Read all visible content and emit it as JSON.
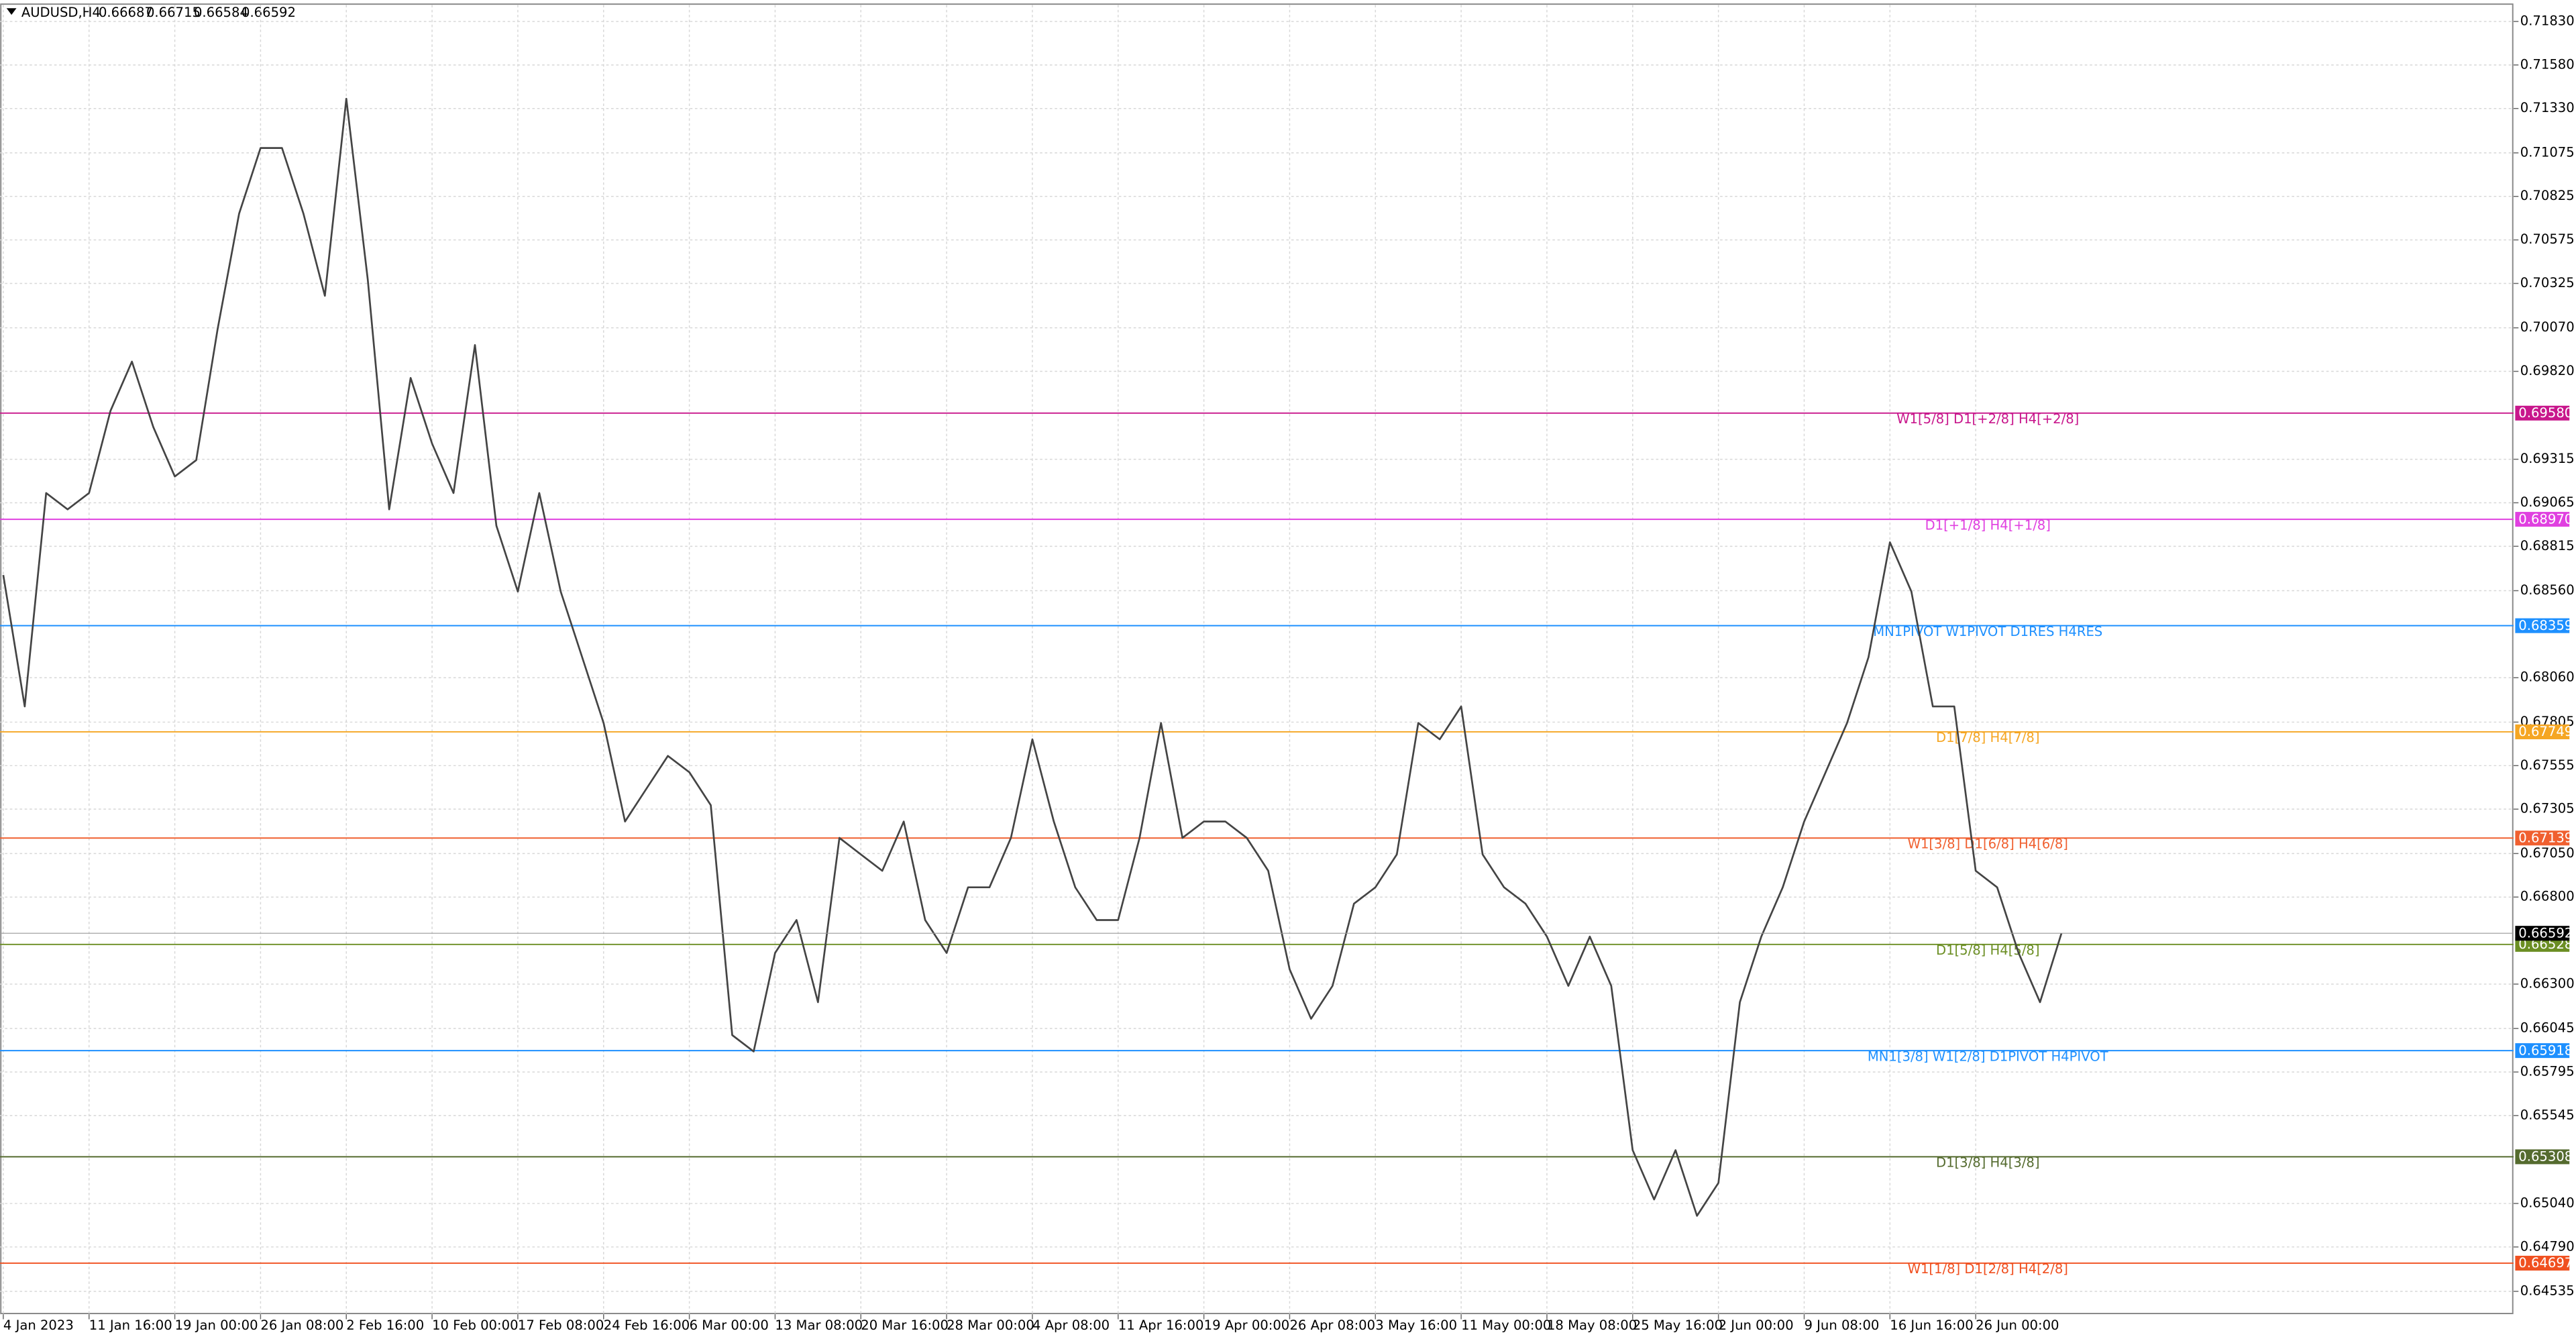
{
  "chart_data": {
    "type": "line",
    "symbol": "AUDUSD,H4",
    "ohlc": [
      0.66687,
      0.66715,
      0.66584,
      0.66592
    ],
    "current_price": 0.66592,
    "categories": [
      "4 Jan 2023",
      null,
      null,
      null,
      "11 Jan 16:00",
      null,
      null,
      null,
      "19 Jan 00:00",
      null,
      null,
      null,
      "26 Jan 08:00",
      null,
      null,
      null,
      "2 Feb 16:00",
      null,
      null,
      null,
      "10 Feb 00:00",
      null,
      null,
      null,
      "17 Feb 08:00",
      null,
      null,
      null,
      "24 Feb 16:00",
      null,
      null,
      null,
      "6 Mar 00:00",
      null,
      null,
      null,
      "13 Mar 08:00",
      null,
      null,
      null,
      "20 Mar 16:00",
      null,
      null,
      null,
      "28 Mar 00:00",
      null,
      null,
      null,
      "4 Apr 08:00",
      null,
      null,
      null,
      "11 Apr 16:00",
      null,
      null,
      null,
      "19 Apr 00:00",
      null,
      null,
      null,
      "26 Apr 08:00",
      null,
      null,
      null,
      "3 May 16:00",
      null,
      null,
      null,
      "11 May 00:00",
      null,
      null,
      null,
      "18 May 08:00",
      null,
      null,
      null,
      "25 May 16:00",
      null,
      null,
      null,
      "2 Jun 00:00",
      null,
      null,
      null,
      "9 Jun 08:00",
      null,
      null,
      null,
      "16 Jun 16:00",
      null,
      null,
      null,
      "26 Jun 00:00",
      null,
      null,
      null,
      null
    ],
    "values": [
      0.6865,
      0.67895,
      0.69121,
      0.69027,
      0.69121,
      0.69593,
      0.69876,
      0.69499,
      0.69216,
      0.6931,
      0.70065,
      0.70726,
      0.71103,
      0.71103,
      0.70726,
      0.70254,
      0.71386,
      0.70348,
      0.69027,
      0.69782,
      0.69405,
      0.69121,
      0.69971,
      0.68933,
      0.68555,
      0.69121,
      0.68555,
      0.68178,
      0.678,
      0.67234,
      0.67423,
      0.67611,
      0.67517,
      0.67328,
      0.66007,
      0.65913,
      0.66479,
      0.66668,
      0.66196,
      0.6714,
      0.67045,
      0.66951,
      0.67234,
      0.66668,
      0.66479,
      0.66856,
      0.66856,
      0.6714,
      0.67706,
      0.67234,
      0.66856,
      0.66668,
      0.66668,
      0.6714,
      0.678,
      0.6714,
      0.67234,
      0.67234,
      0.6714,
      0.66951,
      0.66385,
      0.66101,
      0.6629,
      0.66762,
      0.66856,
      0.67045,
      0.678,
      0.67706,
      0.67895,
      0.67045,
      0.66856,
      0.66762,
      0.66573,
      0.6629,
      0.66573,
      0.6629,
      0.65346,
      0.65063,
      0.65346,
      0.64969,
      0.65158,
      0.66196,
      0.66573,
      0.66856,
      0.67234,
      0.67517,
      0.678,
      0.68178,
      0.68838,
      0.68555,
      0.67895,
      0.67895,
      0.66951,
      0.66856,
      0.66479,
      0.66196,
      0.66592
    ],
    "color": "#444444",
    "ylim": [
      0.64403,
      0.71953
    ],
    "yticks": [
      {
        "value": 0.7183,
        "label": "0.71830"
      },
      {
        "value": 0.7158,
        "label": "0.71580"
      },
      {
        "value": 0.7133,
        "label": "0.71330"
      },
      0.71075,
      0.70825,
      0.70575,
      0.70325,
      {
        "value": 0.7007,
        "label": "0.70070"
      },
      {
        "value": 0.6982,
        "label": "0.69820"
      },
      0.69315,
      0.69065,
      0.68815,
      {
        "value": 0.6856,
        "label": "0.68560"
      },
      {
        "value": 0.6806,
        "label": "0.68060"
      },
      0.67805,
      0.67555,
      0.67305,
      {
        "value": 0.6705,
        "label": "0.67050"
      },
      {
        "value": 0.668,
        "label": "0.66800"
      },
      {
        "value": 0.663,
        "label": "0.66300"
      },
      0.66045,
      0.65795,
      0.65545,
      {
        "value": 0.6504,
        "label": "0.65040"
      },
      {
        "value": 0.6479,
        "label": "0.64790"
      },
      0.64535
    ],
    "grid": true,
    "levels": [
      {
        "label": "W1[5/8] D1[+2/8] H4[+2/8]",
        "price": {
          "value": 0.6958,
          "label": "0.69580"
        },
        "color": "#c8178c"
      },
      {
        "label": "D1[+1/8] H4[+1/8]",
        "price": {
          "value": 0.6897,
          "label": "0.68970"
        },
        "color": "#e040e0"
      },
      {
        "label": "MN1PIVOT W1PIVOT D1RES H4RES",
        "price": 0.68359,
        "color": "#1e90ff"
      },
      {
        "label": "D1[7/8] H4[7/8]",
        "price": 0.67749,
        "color": "#f5a623"
      },
      {
        "label": "W1[3/8] D1[6/8] H4[6/8]",
        "price": 0.67139,
        "color": "#f06030"
      },
      {
        "label": "D1[5/8] H4[5/8]",
        "price": 0.66528,
        "color": "#6b8e23"
      },
      {
        "label": "MN1[3/8] W1[2/8] D1PIVOT H4PIVOT",
        "price": 0.65918,
        "color": "#1e90ff"
      },
      {
        "label": "D1[3/8] H4[3/8]",
        "price": 0.65308,
        "color": "#556b2f"
      },
      {
        "label": "W1[1/8] D1[2/8] H4[2/8]",
        "price": 0.64697,
        "color": "#f05020"
      }
    ]
  }
}
